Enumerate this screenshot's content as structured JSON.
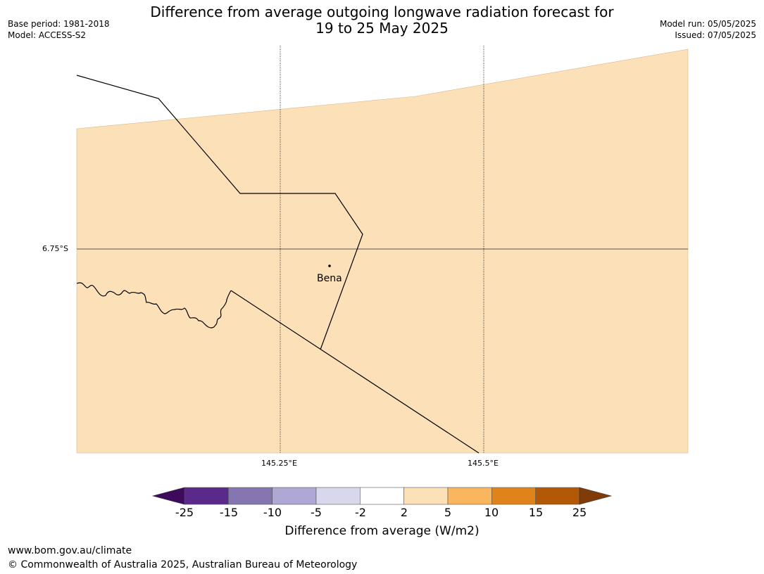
{
  "header": {
    "title_line1": "Difference from average outgoing longwave radiation forecast for",
    "title_line2": "19 to 25 May 2025",
    "base_period": "Base period: 1981-2018",
    "model": "Model: ACCESS-S2",
    "model_run": "Model run: 05/05/2025",
    "issued": "Issued: 07/05/2025"
  },
  "map": {
    "background_fill": "#fce0b8",
    "lat_labels": [
      "6.75°S"
    ],
    "lon_labels": [
      "145.25°E",
      "145.5°E"
    ],
    "places": [
      {
        "name": "Bena"
      }
    ]
  },
  "colorbar": {
    "ticks": [
      "-25",
      "-15",
      "-10",
      "-5",
      "-2",
      "2",
      "5",
      "10",
      "15",
      "25"
    ],
    "colors": [
      "#3d0a5c",
      "#5a2a8a",
      "#8575b0",
      "#b0a8d4",
      "#d8d8ec",
      "#ffffff",
      "#fce0b8",
      "#f9b65e",
      "#e0841a",
      "#b35806",
      "#7f3b08"
    ],
    "label": "Difference from average (W/m2)"
  },
  "footer": {
    "url": "www.bom.gov.au/climate",
    "copyright": "© Commonwealth of Australia 2025, Australian Bureau of Meteorology"
  }
}
